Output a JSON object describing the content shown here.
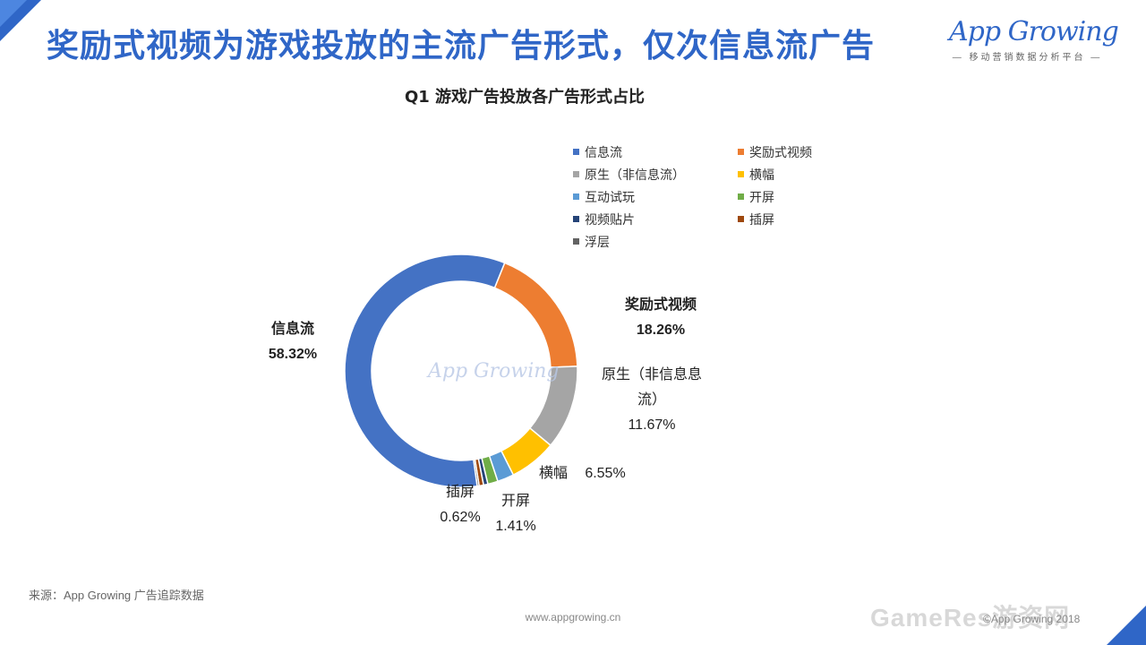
{
  "page": {
    "title": "奖励式视频为游戏投放的主流广告形式，仅次信息流广告",
    "source": "来源：App  Growing  广告追踪数据",
    "url": "www.appgrowing.cn",
    "copyright": "©App Growing 2018",
    "watermark_site": "GameRes游资网"
  },
  "logo": {
    "text": "App Growing",
    "subtitle": "— 移动营销数据分析平台 —",
    "watermark": "App Growing"
  },
  "colors": {
    "accent": "#2f66c7"
  },
  "chart_data": {
    "type": "pie",
    "donut": true,
    "title": "Q1 游戏广告投放各广告形式占比",
    "legend_position": "top-right",
    "series": [
      {
        "name": "信息流",
        "value": 58.32,
        "label": "58.32%",
        "color": "#4472c4"
      },
      {
        "name": "奖励式视频",
        "value": 18.26,
        "label": "18.26%",
        "color": "#ed7d31"
      },
      {
        "name": "原生（非信息流）",
        "value": 11.67,
        "label": "11.67%",
        "color": "#a5a5a5"
      },
      {
        "name": "横幅",
        "value": 6.55,
        "label": "6.55%",
        "color": "#ffc000"
      },
      {
        "name": "互动试玩",
        "value": 2.3,
        "label": "",
        "color": "#5b9bd5"
      },
      {
        "name": "开屏",
        "value": 1.41,
        "label": "1.41%",
        "color": "#70ad47"
      },
      {
        "name": "视频贴片",
        "value": 0.6,
        "label": "",
        "color": "#264478"
      },
      {
        "name": "插屏",
        "value": 0.62,
        "label": "0.62%",
        "color": "#9e480e"
      },
      {
        "name": "浮层",
        "value": 0.27,
        "label": "",
        "color": "#636363"
      }
    ],
    "data_labels": {
      "xinxiliu_name": "信息流",
      "xinxiliu_value": "58.32%",
      "jiangli_name": "奖励式视频",
      "jiangli_value": "18.26%",
      "yuansheng_name_1": "原生（非信息息",
      "yuansheng_name_2": "流）",
      "yuansheng_value": "11.67%",
      "hengfu_name": "横幅",
      "hengfu_value": "6.55%",
      "chaping_name": "插屏",
      "chaping_value": "0.62%",
      "kaiping_name": "开屏",
      "kaiping_value": "1.41%"
    }
  }
}
